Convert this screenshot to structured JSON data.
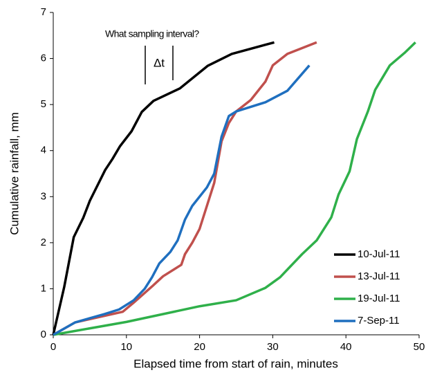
{
  "chart_data": {
    "type": "line",
    "xlabel": "Elapsed time from start of rain, minutes",
    "ylabel": "Cumulative rainfall, mm",
    "annotations": [
      "What sampling interval?",
      "Δt"
    ],
    "xlim": [
      0,
      50
    ],
    "xticks": [
      0,
      10,
      20,
      30,
      40,
      50
    ],
    "ylim": [
      0,
      7
    ],
    "yticks": [
      0,
      1,
      2,
      3,
      4,
      5,
      6,
      7
    ],
    "legend": "lower right",
    "series": [
      {
        "name": "10-Jul-11",
        "color": "#000000",
        "x": [
          0,
          1.5,
          2.8,
          4.1,
          5,
          7.1,
          8.1,
          9.1,
          10.7,
          12.1,
          13.7,
          17.3,
          21.1,
          24.4,
          30.2
        ],
        "values": [
          0,
          1.04,
          2.12,
          2.54,
          2.91,
          3.58,
          3.82,
          4.09,
          4.42,
          4.84,
          5.08,
          5.35,
          5.84,
          6.1,
          6.35
        ]
      },
      {
        "name": "13-Jul-11",
        "color": "#c0504d",
        "x": [
          0,
          3,
          9.5,
          11,
          13.5,
          15,
          17.5,
          18,
          19,
          20,
          21,
          22,
          23,
          24,
          25,
          27,
          29,
          30,
          32,
          36
        ],
        "values": [
          0,
          0.27,
          0.5,
          0.7,
          1.05,
          1.27,
          1.52,
          1.75,
          2.0,
          2.3,
          2.8,
          3.3,
          4.2,
          4.6,
          4.85,
          5.1,
          5.5,
          5.85,
          6.1,
          6.35
        ]
      },
      {
        "name": "19-Jul-11",
        "color": "#2fb04a",
        "x": [
          0,
          10,
          20,
          25,
          29,
          31,
          32.5,
          34,
          36,
          38,
          39,
          40.5,
          41.5,
          43,
          44,
          46,
          48,
          49.5
        ],
        "values": [
          0,
          0.28,
          0.62,
          0.75,
          1.02,
          1.25,
          1.5,
          1.75,
          2.05,
          2.55,
          3.05,
          3.55,
          4.25,
          4.85,
          5.32,
          5.85,
          6.12,
          6.35
        ]
      },
      {
        "name": "7-Sep-11",
        "color": "#1f6fbf",
        "x": [
          0,
          3,
          7,
          9,
          11,
          12.5,
          13.5,
          14.5,
          16,
          17,
          18,
          19,
          21,
          22,
          23,
          24,
          25,
          27,
          29,
          32,
          35
        ],
        "values": [
          0,
          0.27,
          0.45,
          0.55,
          0.75,
          1.0,
          1.25,
          1.55,
          1.8,
          2.05,
          2.5,
          2.8,
          3.2,
          3.5,
          4.3,
          4.75,
          4.85,
          4.95,
          5.05,
          5.3,
          5.85
        ]
      }
    ]
  }
}
